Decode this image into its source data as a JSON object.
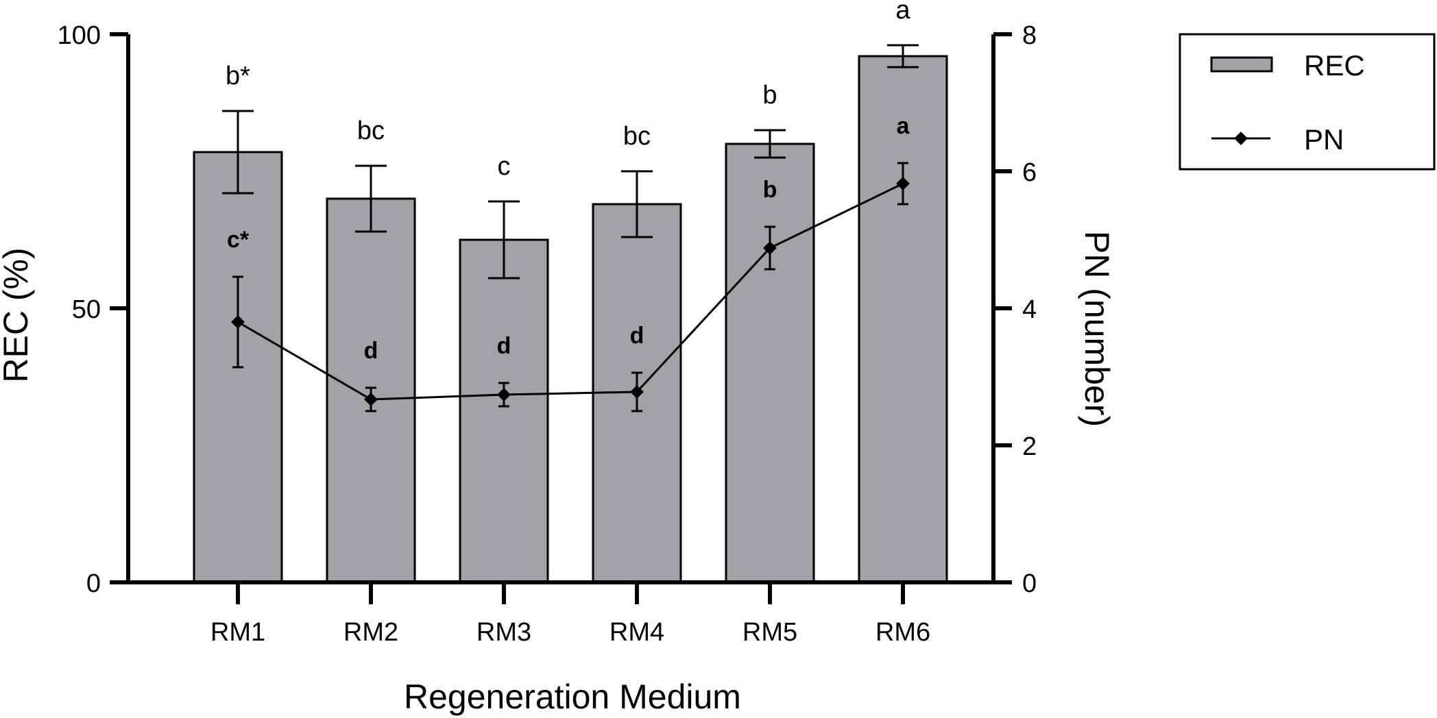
{
  "chart_data": {
    "type": "bar+line",
    "title": "",
    "categories": [
      "RM1",
      "RM2",
      "RM3",
      "RM4",
      "RM5",
      "RM6"
    ],
    "xlabel": "Regeneration Medium",
    "ylabel_left": "REC (%)",
    "ylabel_right": "PN (number)",
    "ylim_left": [
      0,
      100
    ],
    "ylim_right": [
      0,
      8
    ],
    "yticks_left": [
      "0",
      "50",
      "100"
    ],
    "yticks_right": [
      "0",
      "2",
      "4",
      "6",
      "8"
    ],
    "series": [
      {
        "name": "REC",
        "type": "bar",
        "axis": "left",
        "color": "#a3a2a7",
        "values": [
          78.5,
          70.0,
          62.5,
          69.0,
          80.0,
          96.0
        ],
        "errors": [
          7.5,
          6.0,
          7.0,
          6.0,
          2.5,
          2.0
        ],
        "labels": [
          "b*",
          "bc",
          "c",
          "bc",
          "b",
          "a"
        ]
      },
      {
        "name": "PN",
        "type": "line",
        "axis": "right",
        "color": "#000000",
        "values": [
          3.8,
          2.67,
          2.74,
          2.78,
          4.88,
          5.82
        ],
        "errors": [
          0.66,
          0.17,
          0.17,
          0.28,
          0.31,
          0.3
        ],
        "labels": [
          "c*",
          "d",
          "d",
          "d",
          "b",
          "a"
        ]
      }
    ],
    "legend": {
      "position": "top-right",
      "items": [
        "REC",
        "PN"
      ]
    }
  }
}
